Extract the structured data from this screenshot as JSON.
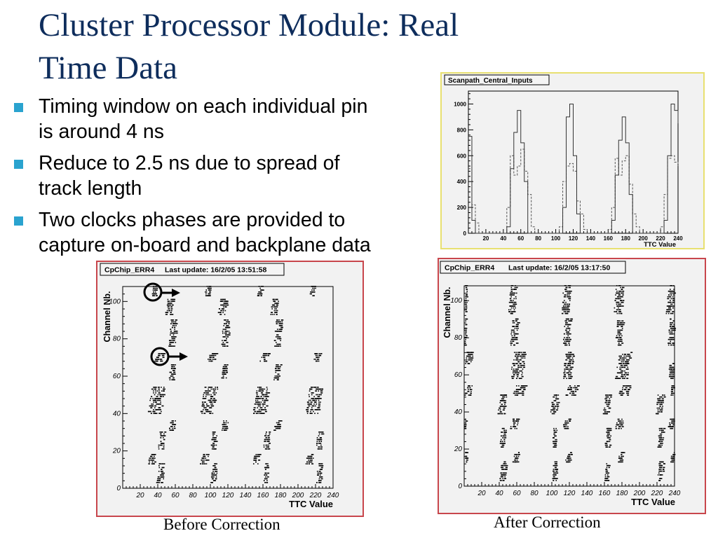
{
  "slide": {
    "title_line1": "Cluster Processor Module: Real",
    "title_line2": "Time Data",
    "bullets": [
      {
        "line1": "Timing window on each individual pin",
        "line2": "is around 4 ns"
      },
      {
        "line1": "Reduce to 2.5 ns due to spread of",
        "line2": "track length"
      },
      {
        "line1": "Two clocks phases are provided to",
        "line2": "capture on-board and backplane data"
      }
    ],
    "captions": {
      "before": "Before Correction",
      "after": "After Correction"
    },
    "colors": {
      "title": "#0e2d5c",
      "bullet_marker": "#2aa3cf",
      "histogram_frame": "#e8e070",
      "scatter_frame": "#c8464c"
    }
  },
  "histogram": {
    "title": "Scanpath_Central_Inputs",
    "xlabel": "TTC Value",
    "xlim": [
      0,
      240
    ],
    "ylim": [
      0,
      1100
    ],
    "xticks": [
      20,
      40,
      60,
      80,
      100,
      120,
      140,
      160,
      180,
      200,
      220,
      240
    ],
    "yticks": [
      0,
      200,
      400,
      600,
      800,
      1000
    ],
    "solid": {
      "x": [
        0,
        4,
        8,
        12,
        16,
        20,
        24,
        28,
        32,
        36,
        40,
        44,
        48,
        52,
        56,
        60,
        64,
        68,
        72,
        76,
        80,
        84,
        88,
        92,
        96,
        100,
        104,
        108,
        112,
        116,
        120,
        124,
        128,
        132,
        136,
        140,
        144,
        148,
        152,
        156,
        160,
        164,
        168,
        172,
        176,
        180,
        184,
        188,
        192,
        196,
        200,
        204,
        208,
        212,
        216,
        220,
        224,
        228,
        232,
        236,
        240
      ],
      "y": [
        750,
        100,
        0,
        0,
        0,
        0,
        0,
        0,
        0,
        0,
        0,
        50,
        500,
        780,
        950,
        700,
        400,
        0,
        0,
        0,
        0,
        0,
        0,
        0,
        0,
        0,
        0,
        200,
        900,
        1000,
        600,
        150,
        0,
        0,
        0,
        0,
        0,
        0,
        0,
        0,
        0,
        100,
        450,
        720,
        900,
        700,
        300,
        0,
        0,
        0,
        0,
        0,
        0,
        0,
        0,
        0,
        100,
        600,
        1000,
        950,
        850
      ]
    },
    "dashed": {
      "x": [
        0,
        4,
        8,
        12,
        16,
        20,
        24,
        28,
        32,
        36,
        40,
        44,
        48,
        52,
        56,
        60,
        64,
        68,
        72,
        76,
        80,
        84,
        88,
        92,
        96,
        100,
        104,
        108,
        112,
        116,
        120,
        124,
        128,
        132,
        136,
        140,
        144,
        148,
        152,
        156,
        160,
        164,
        168,
        172,
        176,
        180,
        184,
        188,
        192,
        196,
        200,
        204,
        208,
        212,
        216,
        220,
        224,
        228,
        232,
        236,
        240
      ],
      "y": [
        500,
        220,
        80,
        0,
        0,
        0,
        0,
        0,
        0,
        0,
        0,
        200,
        600,
        450,
        520,
        650,
        480,
        300,
        50,
        0,
        0,
        0,
        0,
        0,
        0,
        0,
        50,
        400,
        520,
        540,
        480,
        250,
        150,
        30,
        0,
        0,
        0,
        0,
        0,
        0,
        30,
        200,
        580,
        450,
        560,
        600,
        380,
        150,
        50,
        0,
        0,
        0,
        0,
        0,
        0,
        50,
        300,
        580,
        600,
        550,
        520
      ]
    }
  },
  "scatter_before": {
    "title": "CpChip_ERR4",
    "update_label": "Last update: 16/2/05 13:51:58",
    "xlabel": "TTC Value",
    "ylabel": "Channel Nb.",
    "xlim": [
      0,
      240
    ],
    "ylim": [
      0,
      108
    ],
    "xticks": [
      20,
      40,
      60,
      80,
      100,
      120,
      140,
      160,
      180,
      200,
      220,
      240
    ],
    "yticks": [
      0,
      20,
      40,
      60,
      80,
      100
    ],
    "clusters": [
      {
        "x": [
          32,
          40
        ],
        "ch": [
          103,
          108
        ]
      },
      {
        "x": [
          93,
          100
        ],
        "ch": [
          103,
          108
        ]
      },
      {
        "x": [
          153,
          160
        ],
        "ch": [
          103,
          108
        ]
      },
      {
        "x": [
          213,
          220
        ],
        "ch": [
          103,
          108
        ]
      },
      {
        "x": [
          48,
          58
        ],
        "ch": [
          93,
          101
        ]
      },
      {
        "x": [
          108,
          120
        ],
        "ch": [
          93,
          101
        ]
      },
      {
        "x": [
          168,
          178
        ],
        "ch": [
          93,
          101
        ]
      },
      {
        "x": [
          52,
          62
        ],
        "ch": [
          76,
          90
        ]
      },
      {
        "x": [
          112,
          122
        ],
        "ch": [
          76,
          90
        ]
      },
      {
        "x": [
          172,
          182
        ],
        "ch": [
          76,
          90
        ]
      },
      {
        "x": [
          36,
          48
        ],
        "ch": [
          68,
          72
        ]
      },
      {
        "x": [
          96,
          108
        ],
        "ch": [
          68,
          72
        ]
      },
      {
        "x": [
          156,
          168
        ],
        "ch": [
          68,
          72
        ]
      },
      {
        "x": [
          216,
          226
        ],
        "ch": [
          68,
          72
        ]
      },
      {
        "x": [
          52,
          60
        ],
        "ch": [
          58,
          66
        ]
      },
      {
        "x": [
          112,
          120
        ],
        "ch": [
          58,
          66
        ]
      },
      {
        "x": [
          172,
          180
        ],
        "ch": [
          58,
          66
        ]
      },
      {
        "x": [
          28,
          48
        ],
        "ch": [
          40,
          54
        ]
      },
      {
        "x": [
          88,
          108
        ],
        "ch": [
          40,
          54
        ]
      },
      {
        "x": [
          148,
          168
        ],
        "ch": [
          40,
          54
        ]
      },
      {
        "x": [
          208,
          228
        ],
        "ch": [
          40,
          54
        ]
      },
      {
        "x": [
          52,
          60
        ],
        "ch": [
          31,
          36
        ]
      },
      {
        "x": [
          112,
          120
        ],
        "ch": [
          31,
          36
        ]
      },
      {
        "x": [
          172,
          180
        ],
        "ch": [
          31,
          36
        ]
      },
      {
        "x": [
          40,
          48
        ],
        "ch": [
          21,
          30
        ]
      },
      {
        "x": [
          100,
          108
        ],
        "ch": [
          21,
          30
        ]
      },
      {
        "x": [
          160,
          168
        ],
        "ch": [
          21,
          30
        ]
      },
      {
        "x": [
          220,
          228
        ],
        "ch": [
          21,
          30
        ]
      },
      {
        "x": [
          28,
          38
        ],
        "ch": [
          13,
          18
        ]
      },
      {
        "x": [
          88,
          98
        ],
        "ch": [
          13,
          18
        ]
      },
      {
        "x": [
          148,
          156
        ],
        "ch": [
          13,
          18
        ]
      },
      {
        "x": [
          208,
          218
        ],
        "ch": [
          13,
          18
        ]
      },
      {
        "x": [
          38,
          48
        ],
        "ch": [
          3,
          13
        ]
      },
      {
        "x": [
          100,
          108
        ],
        "ch": [
          3,
          13
        ]
      },
      {
        "x": [
          160,
          166
        ],
        "ch": [
          3,
          13
        ]
      },
      {
        "x": [
          220,
          228
        ],
        "ch": [
          3,
          13
        ]
      }
    ]
  },
  "scatter_after": {
    "title": "CpChip_ERR4",
    "update_label": "Last update: 16/2/05 13:17:50",
    "xlabel": "TTC Value",
    "ylabel": "Channel Nb.",
    "xlim": [
      0,
      240
    ],
    "ylim": [
      0,
      108
    ],
    "xticks": [
      20,
      40,
      60,
      80,
      100,
      120,
      140,
      160,
      180,
      200,
      220,
      240
    ],
    "yticks": [
      0,
      20,
      40,
      60,
      80,
      100
    ],
    "clusters": [
      {
        "x": [
          0,
          3
        ],
        "ch": [
          93,
          108
        ]
      },
      {
        "x": [
          50,
          60
        ],
        "ch": [
          93,
          108
        ]
      },
      {
        "x": [
          110,
          122
        ],
        "ch": [
          93,
          108
        ]
      },
      {
        "x": [
          170,
          182
        ],
        "ch": [
          93,
          108
        ]
      },
      {
        "x": [
          230,
          240
        ],
        "ch": [
          93,
          108
        ]
      },
      {
        "x": [
          0,
          2
        ],
        "ch": [
          76,
          90
        ]
      },
      {
        "x": [
          52,
          62
        ],
        "ch": [
          76,
          90
        ]
      },
      {
        "x": [
          112,
          122
        ],
        "ch": [
          76,
          90
        ]
      },
      {
        "x": [
          172,
          182
        ],
        "ch": [
          76,
          90
        ]
      },
      {
        "x": [
          232,
          240
        ],
        "ch": [
          76,
          90
        ]
      },
      {
        "x": [
          0,
          10
        ],
        "ch": [
          66,
          72
        ]
      },
      {
        "x": [
          52,
          70
        ],
        "ch": [
          58,
          72
        ]
      },
      {
        "x": [
          112,
          125
        ],
        "ch": [
          58,
          72
        ]
      },
      {
        "x": [
          172,
          190
        ],
        "ch": [
          58,
          72
        ]
      },
      {
        "x": [
          232,
          240
        ],
        "ch": [
          58,
          66
        ]
      },
      {
        "x": [
          0,
          10
        ],
        "ch": [
          49,
          54
        ]
      },
      {
        "x": [
          55,
          70
        ],
        "ch": [
          49,
          54
        ]
      },
      {
        "x": [
          115,
          130
        ],
        "ch": [
          49,
          54
        ]
      },
      {
        "x": [
          175,
          190
        ],
        "ch": [
          49,
          54
        ]
      },
      {
        "x": [
          235,
          240
        ],
        "ch": [
          49,
          54
        ]
      },
      {
        "x": [
          38,
          48
        ],
        "ch": [
          39,
          49
        ]
      },
      {
        "x": [
          98,
          108
        ],
        "ch": [
          39,
          49
        ]
      },
      {
        "x": [
          158,
          168
        ],
        "ch": [
          39,
          49
        ]
      },
      {
        "x": [
          218,
          228
        ],
        "ch": [
          39,
          49
        ]
      },
      {
        "x": [
          0,
          2
        ],
        "ch": [
          31,
          36
        ]
      },
      {
        "x": [
          52,
          62
        ],
        "ch": [
          31,
          36
        ]
      },
      {
        "x": [
          112,
          120
        ],
        "ch": [
          31,
          36
        ]
      },
      {
        "x": [
          172,
          182
        ],
        "ch": [
          31,
          36
        ]
      },
      {
        "x": [
          232,
          240
        ],
        "ch": [
          31,
          36
        ]
      },
      {
        "x": [
          40,
          48
        ],
        "ch": [
          21,
          31
        ]
      },
      {
        "x": [
          100,
          106
        ],
        "ch": [
          21,
          31
        ]
      },
      {
        "x": [
          160,
          168
        ],
        "ch": [
          21,
          31
        ]
      },
      {
        "x": [
          220,
          228
        ],
        "ch": [
          21,
          31
        ]
      },
      {
        "x": [
          0,
          3
        ],
        "ch": [
          13,
          18
        ]
      },
      {
        "x": [
          55,
          63
        ],
        "ch": [
          13,
          18
        ]
      },
      {
        "x": [
          115,
          122
        ],
        "ch": [
          13,
          18
        ]
      },
      {
        "x": [
          175,
          182
        ],
        "ch": [
          13,
          18
        ]
      },
      {
        "x": [
          235,
          240
        ],
        "ch": [
          13,
          18
        ]
      },
      {
        "x": [
          40,
          48
        ],
        "ch": [
          3,
          13
        ]
      },
      {
        "x": [
          100,
          106
        ],
        "ch": [
          3,
          13
        ]
      },
      {
        "x": [
          160,
          166
        ],
        "ch": [
          3,
          13
        ]
      },
      {
        "x": [
          220,
          228
        ],
        "ch": [
          3,
          13
        ]
      }
    ]
  }
}
